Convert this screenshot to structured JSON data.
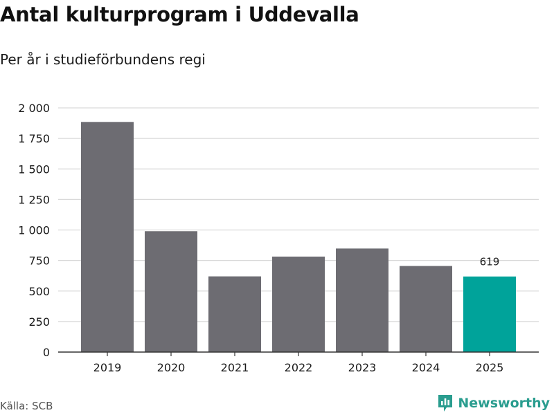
{
  "chart_data": {
    "type": "bar",
    "title": "Antal kulturprogram i Uddevalla",
    "subtitle": "Per år i studieförbundens regi",
    "categories": [
      "2019",
      "2020",
      "2021",
      "2022",
      "2023",
      "2024",
      "2025"
    ],
    "values": [
      1885,
      990,
      620,
      782,
      848,
      705,
      619
    ],
    "highlight_index": 6,
    "data_labels": [
      {
        "index": 6,
        "text": "619"
      }
    ],
    "ylim": [
      0,
      2000
    ],
    "yticks": [
      0,
      250,
      500,
      750,
      1000,
      1250,
      1500,
      1750,
      2000
    ],
    "ytick_labels": [
      "0",
      "250",
      "500",
      "750",
      "1 000",
      "1 250",
      "1 500",
      "1 750",
      "2 000"
    ],
    "xlabel": "",
    "ylabel": "",
    "grid": true,
    "colors": {
      "bar": "#6d6c72",
      "highlight": "#00a39a",
      "grid": "#d9d9d9",
      "axis": "#333333"
    }
  },
  "footer": {
    "source": "Källa: SCB"
  },
  "brand": {
    "name": "Newsworthy",
    "icon": "newsworthy-logo-icon",
    "color": "#2a9d8f"
  }
}
